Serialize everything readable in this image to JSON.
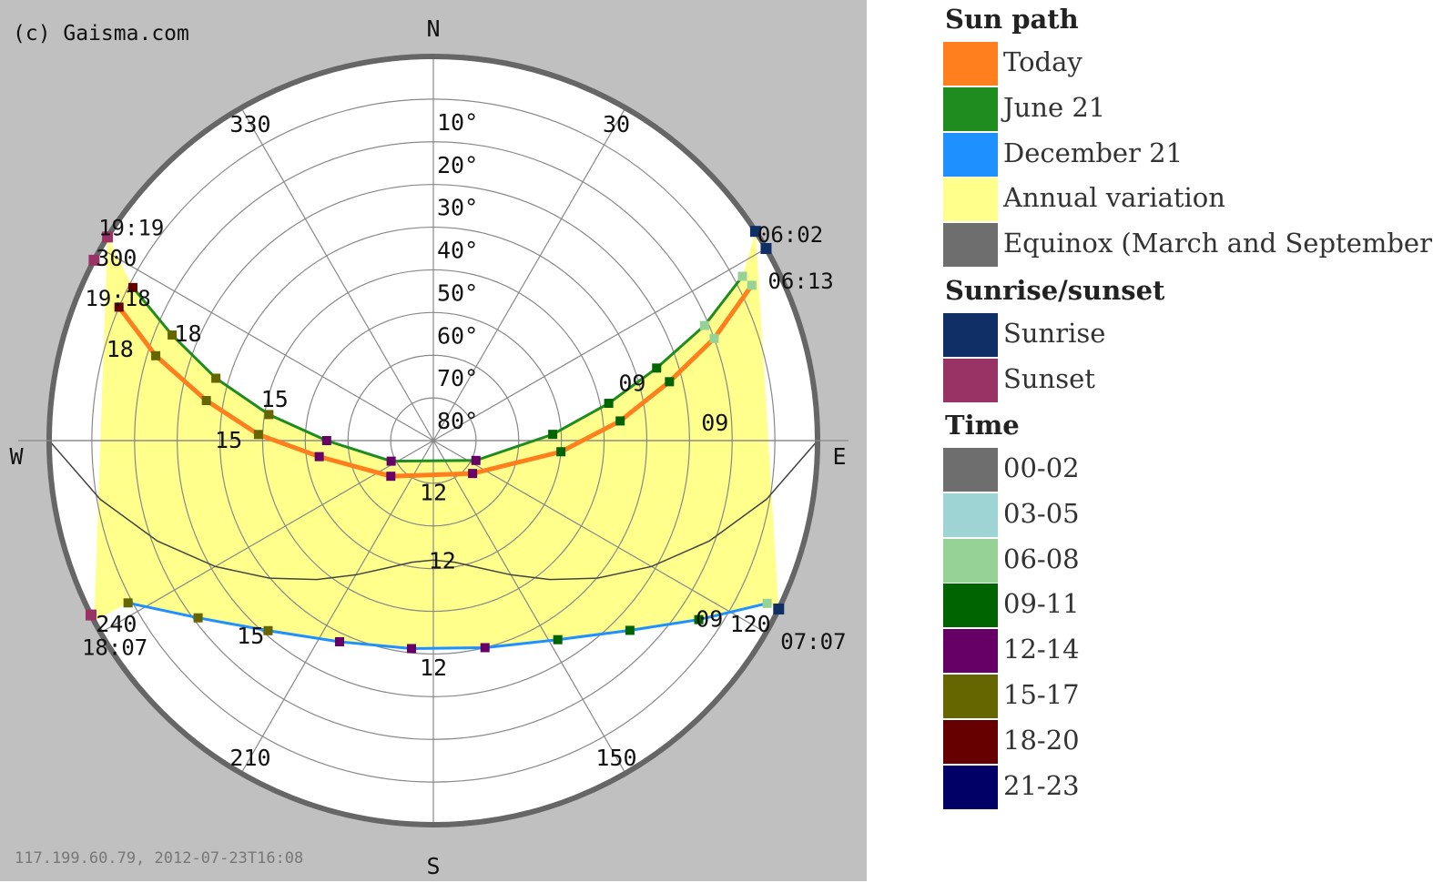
{
  "chart_data": {
    "type": "scatter",
    "title": "",
    "copyright": "(c) Gaisma.com",
    "footer": "117.199.60.79, 2012-07-23T16:08",
    "cardinals": [
      "N",
      "E",
      "S",
      "W"
    ],
    "azimuth_labels": [
      "30",
      "120",
      "150",
      "210",
      "240",
      "300",
      "330"
    ],
    "elevation_labels": [
      "10°",
      "20°",
      "30°",
      "40°",
      "50°",
      "60°",
      "70°",
      "80°"
    ],
    "series": [
      {
        "name": "Today",
        "color": "#ff7f1e",
        "points": [
          {
            "az": 64,
            "alt": 7,
            "hour": "07"
          },
          {
            "az": 70,
            "alt": 20,
            "hour": "08"
          },
          {
            "az": 76,
            "alt": 33,
            "hour": "09"
          },
          {
            "az": 84,
            "alt": 46,
            "hour": "10"
          },
          {
            "az": 95,
            "alt": 60,
            "hour": "11"
          },
          {
            "az": 130,
            "alt": 78,
            "hour": "12"
          },
          {
            "az": 230,
            "alt": 77,
            "hour": "13"
          },
          {
            "az": 262,
            "alt": 63,
            "hour": "14"
          },
          {
            "az": 272,
            "alt": 49,
            "hour": "15"
          },
          {
            "az": 280,
            "alt": 36,
            "hour": "16"
          },
          {
            "az": 287,
            "alt": 22,
            "hour": "17"
          },
          {
            "az": 293,
            "alt": 10,
            "hour": "18"
          }
        ]
      },
      {
        "name": "June 21",
        "color": "#1e8c1e",
        "points": [
          {
            "az": 62,
            "alt": 8,
            "hour": "07"
          },
          {
            "az": 67,
            "alt": 21,
            "hour": "08"
          },
          {
            "az": 72,
            "alt": 35,
            "hour": "09"
          },
          {
            "az": 78,
            "alt": 48,
            "hour": "10"
          },
          {
            "az": 87,
            "alt": 62,
            "hour": "11"
          },
          {
            "az": 115,
            "alt": 79,
            "hour": "12"
          },
          {
            "az": 244,
            "alt": 79,
            "hour": "13"
          },
          {
            "az": 270,
            "alt": 65,
            "hour": "14"
          },
          {
            "az": 279,
            "alt": 51,
            "hour": "15"
          },
          {
            "az": 286,
            "alt": 37,
            "hour": "16"
          },
          {
            "az": 292,
            "alt": 24,
            "hour": "17"
          },
          {
            "az": 297,
            "alt": 11,
            "hour": "18"
          }
        ]
      },
      {
        "name": "December 21",
        "color": "#1e90ff",
        "points": [
          {
            "az": 116,
            "alt": 3,
            "hour": "08"
          },
          {
            "az": 124,
            "alt": 15,
            "hour": "09"
          },
          {
            "az": 134,
            "alt": 26,
            "hour": "10"
          },
          {
            "az": 148,
            "alt": 35,
            "hour": "11"
          },
          {
            "az": 166,
            "alt": 40,
            "hour": "12"
          },
          {
            "az": 186,
            "alt": 41,
            "hour": "13"
          },
          {
            "az": 205,
            "alt": 38,
            "hour": "14"
          },
          {
            "az": 221,
            "alt": 31,
            "hour": "15"
          },
          {
            "az": 233,
            "alt": 21,
            "hour": "16"
          },
          {
            "az": 242,
            "alt": 9,
            "hour": "17"
          }
        ]
      }
    ],
    "sunrise_sunset": [
      {
        "label": "06:02",
        "type": "sunrise",
        "series": "June 21"
      },
      {
        "label": "06:13",
        "type": "sunrise",
        "series": "Today"
      },
      {
        "label": "07:07",
        "type": "sunrise",
        "series": "December 21"
      },
      {
        "label": "19:19",
        "type": "sunset",
        "series": "June 21"
      },
      {
        "label": "19:18",
        "type": "sunset",
        "series": "Today"
      },
      {
        "label": "18:07",
        "type": "sunset",
        "series": "December 21"
      }
    ],
    "hour_labels": [
      "09",
      "12",
      "15",
      "18"
    ],
    "legend_placement": "right"
  },
  "legend": {
    "sun_path_heading": "Sun path",
    "sun_path": [
      {
        "label": "Today",
        "color": "#ff7f1e"
      },
      {
        "label": "June 21",
        "color": "#1e8c1e"
      },
      {
        "label": "December 21",
        "color": "#1e90ff"
      },
      {
        "label": "Annual variation",
        "color": "#ffff8c"
      },
      {
        "label": "Equinox (March and September)",
        "color": "#6e6e6e"
      }
    ],
    "sunrise_heading": "Sunrise/sunset",
    "sunrise": [
      {
        "label": "Sunrise",
        "color": "#0f2f66"
      },
      {
        "label": "Sunset",
        "color": "#993366"
      }
    ],
    "time_heading": "Time",
    "time": [
      {
        "label": "00-02",
        "color": "#6e6e6e"
      },
      {
        "label": "03-05",
        "color": "#9ed4d4"
      },
      {
        "label": "06-08",
        "color": "#96d296"
      },
      {
        "label": "09-11",
        "color": "#006400"
      },
      {
        "label": "12-14",
        "color": "#660066"
      },
      {
        "label": "15-17",
        "color": "#666600"
      },
      {
        "label": "18-20",
        "color": "#660000"
      },
      {
        "label": "21-23",
        "color": "#000066"
      }
    ]
  },
  "colors": {
    "background": "#c0c0c0",
    "plot_face": "#ffffff",
    "annual_variation": "#ffff8c",
    "grid": "#888888",
    "rim": "#666666"
  }
}
